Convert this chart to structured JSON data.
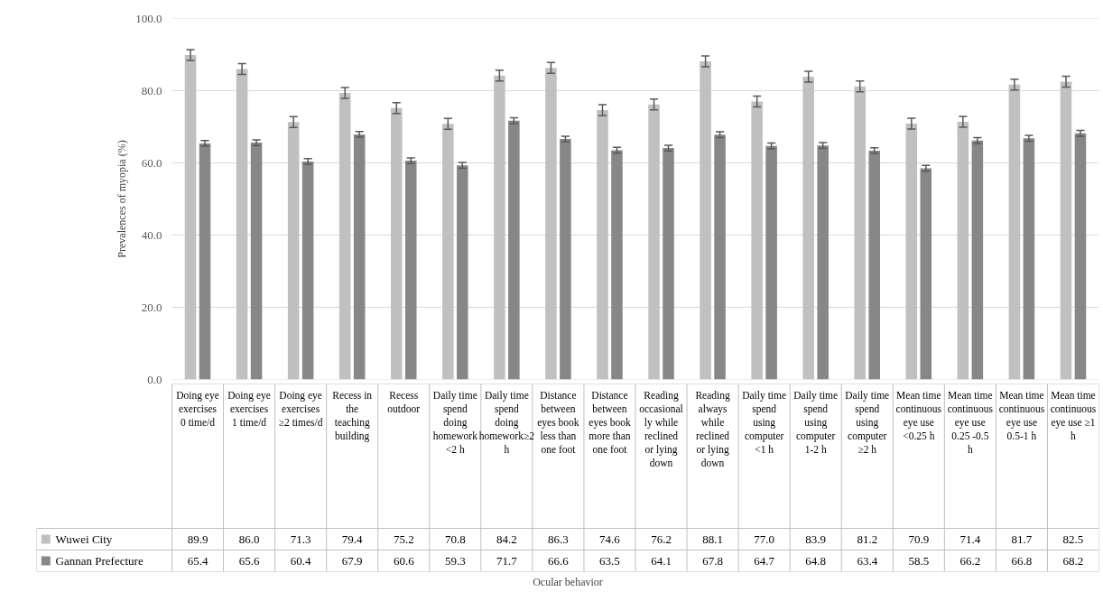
{
  "chart_data": {
    "type": "bar",
    "ylabel": "Prevalences of myopia (%)",
    "annotations": [
      "Ocular behavior"
    ],
    "categories": [
      "Doing eye exercises 0 time/d",
      "Doing eye exercises 1 time/d",
      "Doing eye exercises ≥2 times/d",
      "Recess in the teaching building",
      "Recess outdoor",
      "Daily time spend doing homework <2 h",
      "Daily time spend doing homework≥2 h",
      "Distance between eyes book less than one foot",
      "Distance between eyes book more than one foot",
      "Reading occasionally while reclined or lying down",
      "Reading always while reclined or lying down",
      "Daily time spend using computer <1 h",
      "Daily time spend using computer 1-2 h",
      "Daily time spend using computer ≥2 h",
      "Mean time continuous eye use <0.25 h",
      "Mean time continuous eye use 0.25 -0.5 h",
      "Mean time continuous eye use 0.5-1 h",
      "Mean time continuous eye use ≥1 h"
    ],
    "series": [
      {
        "name": "Wuwei City",
        "color": "#c0c0c0",
        "values": [
          89.9,
          86.0,
          71.3,
          79.4,
          75.2,
          70.8,
          84.2,
          86.3,
          74.6,
          76.2,
          88.1,
          77.0,
          83.9,
          81.2,
          70.9,
          71.4,
          81.7,
          82.5
        ],
        "value_labels": [
          "89.9",
          "86.0",
          "71.3",
          "79.4",
          "75.2",
          "70.8",
          "84.2",
          "86.3",
          "74.6",
          "76.2",
          "88.1",
          "77.0",
          "83.9",
          "81.2",
          "70.9",
          "71.4",
          "81.7",
          "82.5"
        ],
        "errors": [
          1.5,
          1.5,
          1.5,
          1.5,
          1.5,
          1.5,
          1.5,
          1.5,
          1.5,
          1.5,
          1.5,
          1.5,
          1.5,
          1.5,
          1.5,
          1.5,
          1.5,
          1.5
        ]
      },
      {
        "name": "Gannan Prefecture",
        "color": "#878787",
        "values": [
          65.4,
          65.6,
          60.4,
          67.9,
          60.6,
          59.3,
          71.7,
          66.6,
          63.5,
          64.1,
          67.8,
          64.7,
          64.8,
          63.4,
          58.5,
          66.2,
          66.8,
          68.2
        ],
        "value_labels": [
          "65.4",
          "65.6",
          "60.4",
          "67.9",
          "60.6",
          "59.3",
          "71.7",
          "66.6",
          "63.5",
          "64.1",
          "67.8",
          "64.7",
          "64.8",
          "63.4",
          "58.5",
          "66.2",
          "66.8",
          "68.2"
        ],
        "errors": [
          0.8,
          0.8,
          0.8,
          0.8,
          0.8,
          0.8,
          0.8,
          0.8,
          0.8,
          0.8,
          0.8,
          0.8,
          0.8,
          0.8,
          0.8,
          0.8,
          0.8,
          0.8
        ]
      }
    ],
    "ylim": [
      0,
      100
    ],
    "yticks": [
      {
        "value": 0,
        "label": "0.0"
      },
      {
        "value": 20,
        "label": "20.0"
      },
      {
        "value": 40,
        "label": "40.0"
      },
      {
        "value": 60,
        "label": "60.0"
      },
      {
        "value": 80,
        "label": "80.0"
      },
      {
        "value": 100,
        "label": "100.0"
      }
    ],
    "grid": "y",
    "legend": "bottom left"
  }
}
